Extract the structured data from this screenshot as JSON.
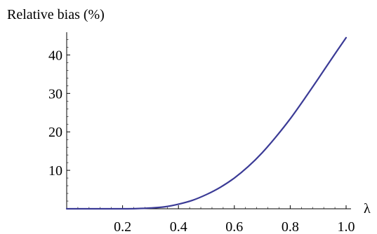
{
  "chart_data": {
    "type": "line",
    "ylabel": "Relative bias (%)",
    "xlabel": "λ",
    "xlim": [
      0.0,
      1.0
    ],
    "ylim": [
      0,
      45
    ],
    "x_ticks": [
      0.2,
      0.4,
      0.6,
      0.8,
      1.0
    ],
    "x_tick_labels": [
      "0.2",
      "0.4",
      "0.6",
      "0.8",
      "1.0"
    ],
    "y_ticks": [
      10,
      20,
      30,
      40
    ],
    "y_tick_labels": [
      "10",
      "20",
      "30",
      "40"
    ],
    "grid": false,
    "legend": "none",
    "series": [
      {
        "color": "#3b3b96",
        "x": [
          0.0,
          0.05,
          0.1,
          0.15,
          0.2,
          0.25,
          0.3,
          0.35,
          0.4,
          0.45,
          0.5,
          0.55,
          0.6,
          0.65,
          0.7,
          0.75,
          0.8,
          0.85,
          0.9,
          0.95,
          1.0
        ],
        "y": [
          0.0,
          0.0,
          0.0,
          0.0,
          0.0,
          0.05,
          0.2,
          0.5,
          1.2,
          2.2,
          3.7,
          5.6,
          8.0,
          11.0,
          14.6,
          18.8,
          23.4,
          28.5,
          33.8,
          39.2,
          44.5
        ]
      }
    ]
  }
}
